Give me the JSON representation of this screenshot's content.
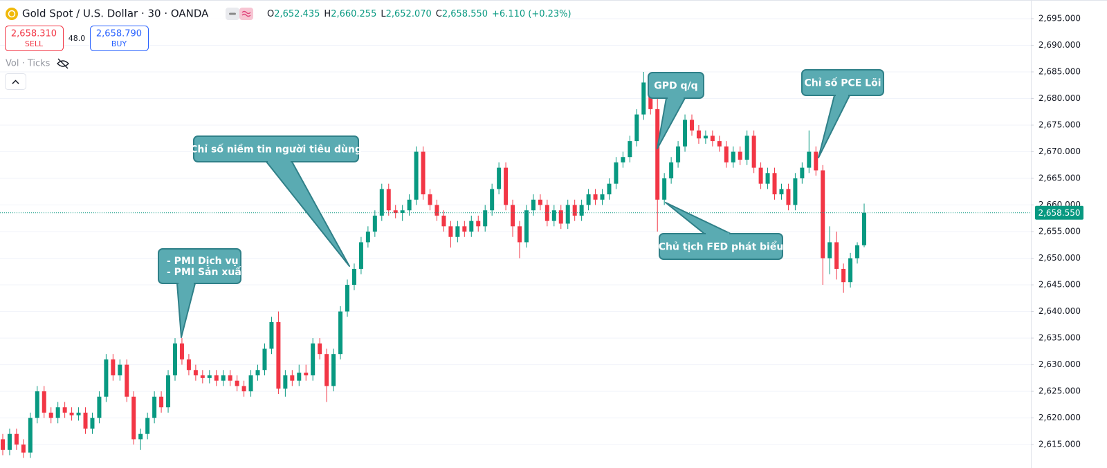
{
  "header": {
    "symbol": "Gold Spot / U.S. Dollar · 30 · OANDA",
    "ohlc": [
      {
        "label": "O",
        "value": "2,652.435"
      },
      {
        "label": "H",
        "value": "2,660.255"
      },
      {
        "label": "L",
        "value": "2,652.070"
      },
      {
        "label": "C",
        "value": "2,658.550"
      }
    ],
    "change": "+6.110 (+0.23%)"
  },
  "trade": {
    "sell_price": "2,658.310",
    "sell_label": "SELL",
    "spread": "48.0",
    "buy_price": "2,658.790",
    "buy_label": "BUY"
  },
  "indicator": "Vol · Ticks",
  "chart_data": {
    "type": "candlestick",
    "up_color": "#089981",
    "down_color": "#f23645",
    "ylim": [
      2610.6,
      2698.5
    ],
    "yticks": [
      {
        "value": 2615,
        "label": "2,615.000"
      },
      {
        "value": 2620,
        "label": "2,620.000"
      },
      {
        "value": 2625,
        "label": "2,625.000"
      },
      {
        "value": 2630,
        "label": "2,630.000"
      },
      {
        "value": 2635,
        "label": "2,635.000"
      },
      {
        "value": 2640,
        "label": "2,640.000"
      },
      {
        "value": 2645,
        "label": "2,645.000"
      },
      {
        "value": 2650,
        "label": "2,650.000"
      },
      {
        "value": 2655,
        "label": "2,655.000"
      },
      {
        "value": 2660,
        "label": "2,660.000"
      },
      {
        "value": 2665,
        "label": "2,665.000"
      },
      {
        "value": 2670,
        "label": "2,670.000"
      },
      {
        "value": 2675,
        "label": "2,675.000"
      },
      {
        "value": 2680,
        "label": "2,680.000"
      },
      {
        "value": 2685,
        "label": "2,685.000"
      },
      {
        "value": 2690,
        "label": "2,690.000"
      },
      {
        "value": 2695,
        "label": "2,695.000"
      }
    ],
    "grid": true,
    "price_line": {
      "value": 2658.55,
      "label": "2,658.550"
    },
    "open": [
      2616,
      2614,
      2617,
      2615,
      2613.5,
      2620,
      2625,
      2621,
      2620,
      2622,
      2621,
      2620.5,
      2621,
      2618,
      2620,
      2624,
      2631,
      2628,
      2630,
      2624,
      2616,
      2617,
      2620,
      2624,
      2622,
      2628,
      2634,
      2631,
      2629,
      2628,
      2627.5,
      2628,
      2627,
      2628,
      2627,
      2626,
      2625,
      2628,
      2629,
      2633,
      2638,
      2625.5,
      2628,
      2627,
      2628.5,
      2628,
      2634,
      2632,
      2626,
      2632,
      2640,
      2645,
      2648,
      2653,
      2655,
      2658,
      2663,
      2659,
      2658.5,
      2659,
      2661,
      2670,
      2662,
      2660,
      2658,
      2656,
      2654,
      2656,
      2655,
      2657,
      2656,
      2659,
      2663,
      2667,
      2660,
      2656,
      2653,
      2659,
      2661,
      2660,
      2657,
      2659,
      2656.5,
      2660,
      2658,
      2660,
      2662,
      2661,
      2662,
      2664,
      2668,
      2669,
      2672,
      2677,
      2683,
      2678,
      2661,
      2665,
      2668,
      2671,
      2676,
      2674,
      2672.5,
      2673,
      2672,
      2671,
      2668,
      2670,
      2668.5,
      2673,
      2667,
      2664,
      2666,
      2662,
      2663,
      2660,
      2665,
      2667,
      2670,
      2666.5,
      2650,
      2653,
      2648,
      2645.5,
      2650,
      2652.435
    ],
    "high": [
      2617,
      2618,
      2618,
      2616,
      2621,
      2626,
      2626,
      2622,
      2623,
      2623,
      2622,
      2622,
      2622,
      2621,
      2625,
      2632,
      2632,
      2631,
      2631,
      2625,
      2618,
      2621,
      2625,
      2625,
      2629,
      2635,
      2635,
      2632,
      2630,
      2629,
      2629,
      2629,
      2629,
      2629,
      2628,
      2627,
      2629,
      2630,
      2634,
      2639,
      2640,
      2629,
      2629,
      2630,
      2630,
      2635,
      2635,
      2633,
      2633,
      2641,
      2646,
      2649,
      2654,
      2656,
      2659,
      2664,
      2664,
      2660,
      2660,
      2662,
      2671,
      2671,
      2663,
      2661,
      2659,
      2657,
      2657,
      2657,
      2658,
      2658,
      2660,
      2664,
      2668,
      2668,
      2661,
      2657,
      2660,
      2662,
      2662,
      2661,
      2660,
      2660,
      2661,
      2661,
      2661,
      2663,
      2663,
      2663,
      2665,
      2669,
      2670,
      2673,
      2678,
      2685,
      2684,
      2680,
      2666,
      2669,
      2672,
      2677,
      2677,
      2675,
      2674,
      2674,
      2673,
      2672,
      2671,
      2671,
      2674,
      2674,
      2668,
      2667,
      2667,
      2664,
      2664,
      2666,
      2668,
      2674,
      2671,
      2667.5,
      2656,
      2655,
      2649,
      2651,
      2653,
      2660.255
    ],
    "low": [
      2613,
      2613,
      2614,
      2612.5,
      2612.5,
      2619,
      2620,
      2619,
      2619,
      2620,
      2619.5,
      2619.5,
      2617,
      2617,
      2619,
      2623,
      2627,
      2627,
      2623,
      2615,
      2614,
      2616,
      2619,
      2621,
      2621,
      2627,
      2630,
      2628,
      2627,
      2626.5,
      2626.5,
      2626,
      2626,
      2626,
      2625,
      2624,
      2624,
      2627,
      2628,
      2632,
      2624.5,
      2624,
      2626,
      2626,
      2627,
      2627,
      2631,
      2623,
      2625,
      2631,
      2639,
      2644,
      2647,
      2652,
      2654,
      2657,
      2658,
      2657.5,
      2657,
      2658,
      2660,
      2661,
      2659,
      2657,
      2655,
      2652,
      2653,
      2654,
      2654,
      2655,
      2655,
      2658,
      2662,
      2659,
      2654,
      2650,
      2652,
      2658,
      2659,
      2656,
      2656,
      2655.5,
      2655.5,
      2657,
      2657,
      2659,
      2660,
      2660,
      2661,
      2663,
      2667,
      2668,
      2671,
      2676,
      2677,
      2655,
      2660,
      2664,
      2667,
      2670,
      2673,
      2671.5,
      2671.5,
      2671,
      2670,
      2667,
      2667,
      2667.5,
      2667.5,
      2666,
      2663,
      2663,
      2661,
      2661,
      2659,
      2659,
      2664,
      2666,
      2665.5,
      2645,
      2647,
      2646,
      2643.5,
      2644.5,
      2649,
      2652.07
    ],
    "close": [
      2614,
      2617,
      2615,
      2613.5,
      2620,
      2625,
      2621,
      2620,
      2622,
      2621,
      2620.5,
      2621,
      2618,
      2620,
      2624,
      2631,
      2628,
      2630,
      2624,
      2616,
      2617,
      2620,
      2624,
      2622,
      2628,
      2634,
      2631,
      2629,
      2628,
      2627.5,
      2628,
      2627,
      2628,
      2627,
      2626,
      2625,
      2628,
      2629,
      2633,
      2638,
      2625.5,
      2628,
      2627,
      2628.5,
      2628,
      2634,
      2632,
      2626,
      2632,
      2640,
      2645,
      2648,
      2653,
      2655,
      2658,
      2663,
      2659,
      2658.5,
      2659,
      2661,
      2670,
      2662,
      2660,
      2658,
      2656,
      2654,
      2656,
      2655,
      2657,
      2656,
      2659,
      2663,
      2667,
      2660,
      2656,
      2653,
      2659,
      2661,
      2660,
      2657,
      2659,
      2656.5,
      2660,
      2658,
      2660,
      2662,
      2661,
      2662,
      2664,
      2668,
      2669,
      2672,
      2677,
      2683,
      2678,
      2661,
      2665,
      2668,
      2671,
      2676,
      2674,
      2672.5,
      2673,
      2672,
      2671,
      2668,
      2670,
      2668.5,
      2673,
      2667,
      2664,
      2666,
      2662,
      2663,
      2660,
      2665,
      2667,
      2670,
      2666.5,
      2650,
      2653,
      2648,
      2645.5,
      2650,
      2652.435,
      2658.55
    ],
    "annotations": [
      {
        "lines": [
          "- PMI Dịch vụ",
          "- PMI Sản xuất"
        ]
      },
      {
        "lines": [
          "Chỉ số niềm tin người tiêu dùng"
        ]
      },
      {
        "lines": [
          "GPD q/q"
        ]
      },
      {
        "lines": [
          "Chỉ số PCE Lõi"
        ]
      },
      {
        "lines": [
          "Chủ tịch FED phát biểu"
        ]
      }
    ]
  }
}
